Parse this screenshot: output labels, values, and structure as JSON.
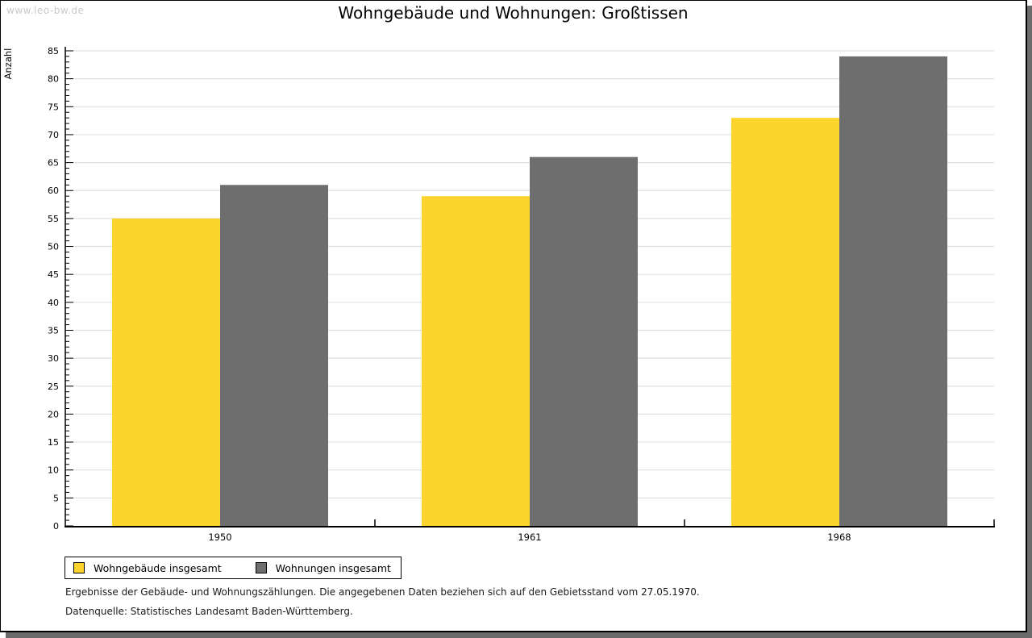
{
  "page": {
    "watermark": "www.leo-bw.de",
    "title": "Wohngebäude und Wohnungen: Großtissen"
  },
  "chart_data": {
    "type": "bar",
    "title": "Wohngebäude und Wohnungen: Großtissen",
    "xlabel": "",
    "ylabel": "Anzahl",
    "categories": [
      "1950",
      "1961",
      "1968"
    ],
    "series": [
      {
        "name": "Wohngebäude insgesamt",
        "color": "#fdd32d",
        "values": [
          55,
          59,
          73
        ]
      },
      {
        "name": "Wohnungen insgesamt",
        "color": "#6e6e6e",
        "values": [
          61,
          66,
          84
        ]
      }
    ],
    "ylim": [
      0,
      85
    ],
    "ytick_step": 5,
    "minor_tick_step": 1,
    "grid": true,
    "grid_color": "#e0e0e0",
    "legend_position": "bottom-left"
  },
  "footer": {
    "line1": "Ergebnisse der Gebäude- und Wohnungszählungen. Die angegebenen Daten beziehen sich auf den Gebietsstand vom 27.05.1970.",
    "line2": "Datenquelle: Statistisches Landesamt Baden-Württemberg."
  }
}
